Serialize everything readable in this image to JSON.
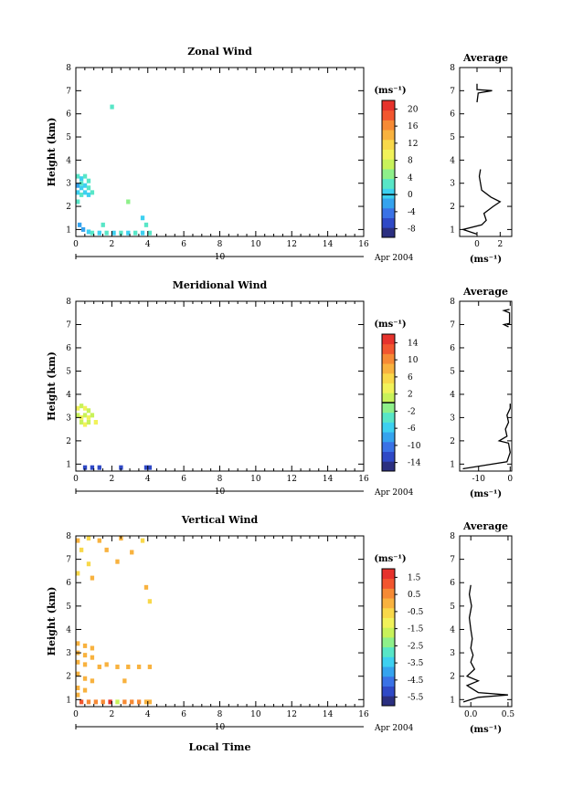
{
  "figure": {
    "x_label": "Local Time",
    "date_label": "Apr 2004",
    "day_label": "10",
    "y_label": "Height (km)",
    "avg_title": "Average",
    "unit_label": "(ms⁻¹)"
  },
  "chart_data": [
    {
      "type": "heatmap",
      "title": "Zonal Wind",
      "x_ticks": [
        "0",
        "2",
        "4",
        "6",
        "8",
        "10",
        "12",
        "14",
        "16"
      ],
      "xlim": [
        0,
        16
      ],
      "y_ticks": [
        "1",
        "2",
        "3",
        "4",
        "5",
        "6",
        "7",
        "8"
      ],
      "ylim": [
        0.7,
        8
      ],
      "colorbar": {
        "ticks": [
          "-8",
          "-4",
          "0",
          "4",
          "8",
          "12",
          "16",
          "20"
        ],
        "range": [
          -10,
          22
        ],
        "zero_line": 0
      },
      "cells": [
        {
          "t": 0.0,
          "h": 3.3,
          "v": 2
        },
        {
          "t": 0.2,
          "h": 3.2,
          "v": 1
        },
        {
          "t": 0.4,
          "h": 3.3,
          "v": 2
        },
        {
          "t": 0.6,
          "h": 3.1,
          "v": 3
        },
        {
          "t": 0.0,
          "h": 2.9,
          "v": -1
        },
        {
          "t": 0.2,
          "h": 2.8,
          "v": 0
        },
        {
          "t": 0.4,
          "h": 2.9,
          "v": 1
        },
        {
          "t": 0.6,
          "h": 2.8,
          "v": 2
        },
        {
          "t": 0.0,
          "h": 2.6,
          "v": 1
        },
        {
          "t": 0.2,
          "h": 2.5,
          "v": 2
        },
        {
          "t": 0.4,
          "h": 2.6,
          "v": 0
        },
        {
          "t": 0.6,
          "h": 2.5,
          "v": 1
        },
        {
          "t": 0.8,
          "h": 2.6,
          "v": 2
        },
        {
          "t": 0.2,
          "h": 3.0,
          "v": 3
        },
        {
          "t": 0.0,
          "h": 2.2,
          "v": 2
        },
        {
          "t": 0.1,
          "h": 1.2,
          "v": -2
        },
        {
          "t": 0.3,
          "h": 1.0,
          "v": -1
        },
        {
          "t": 0.6,
          "h": 0.9,
          "v": 1
        },
        {
          "t": 0.8,
          "h": 0.85,
          "v": 2
        },
        {
          "t": 1.2,
          "h": 0.85,
          "v": 1
        },
        {
          "t": 1.6,
          "h": 0.85,
          "v": 2
        },
        {
          "t": 2.0,
          "h": 0.85,
          "v": 1
        },
        {
          "t": 2.4,
          "h": 0.85,
          "v": 2
        },
        {
          "t": 2.8,
          "h": 0.85,
          "v": 1
        },
        {
          "t": 3.2,
          "h": 0.85,
          "v": 2
        },
        {
          "t": 3.6,
          "h": 0.85,
          "v": 1
        },
        {
          "t": 4.0,
          "h": 0.85,
          "v": 2
        },
        {
          "t": 1.4,
          "h": 1.2,
          "v": 2
        },
        {
          "t": 3.8,
          "h": 1.2,
          "v": 2
        },
        {
          "t": 3.6,
          "h": 1.5,
          "v": 0
        },
        {
          "t": 2.8,
          "h": 2.2,
          "v": 5
        },
        {
          "t": 1.9,
          "h": 6.3,
          "v": 2
        }
      ],
      "average_profile": {
        "xlim": [
          -1.5,
          3
        ],
        "x_ticks": [
          "0",
          "2"
        ],
        "points": [
          {
            "h": 0.8,
            "v": 0.0
          },
          {
            "h": 1.0,
            "v": -1.2
          },
          {
            "h": 1.2,
            "v": 0.4
          },
          {
            "h": 1.4,
            "v": 0.8
          },
          {
            "h": 1.7,
            "v": 0.6
          },
          {
            "h": 2.0,
            "v": 1.4
          },
          {
            "h": 2.2,
            "v": 2.0
          },
          {
            "h": 2.4,
            "v": 1.2
          },
          {
            "h": 2.7,
            "v": 0.4
          },
          {
            "h": 3.0,
            "v": 0.3
          },
          {
            "h": 3.3,
            "v": 0.2
          },
          {
            "h": 3.6,
            "v": 0.3
          }
        ],
        "upper_points": [
          {
            "h": 6.5,
            "v": 0.0
          },
          {
            "h": 6.9,
            "v": 0.1
          },
          {
            "h": 7.0,
            "v": 1.3
          },
          {
            "h": 7.05,
            "v": 0.0
          },
          {
            "h": 7.3,
            "v": 0.0
          }
        ]
      }
    },
    {
      "type": "heatmap",
      "title": "Meridional Wind",
      "x_ticks": [
        "0",
        "2",
        "4",
        "6",
        "8",
        "10",
        "12",
        "14",
        "16"
      ],
      "xlim": [
        0,
        16
      ],
      "y_ticks": [
        "1",
        "2",
        "3",
        "4",
        "5",
        "6",
        "7",
        "8"
      ],
      "ylim": [
        0.7,
        8
      ],
      "colorbar": {
        "ticks": [
          "-14",
          "-10",
          "-6",
          "-2",
          "2",
          "6",
          "10",
          "14"
        ],
        "range": [
          -16,
          16
        ],
        "zero_line": 0
      },
      "cells": [
        {
          "t": 0.0,
          "h": 3.4,
          "v": 3
        },
        {
          "t": 0.2,
          "h": 3.5,
          "v": 2
        },
        {
          "t": 0.4,
          "h": 3.4,
          "v": 3
        },
        {
          "t": 0.6,
          "h": 3.3,
          "v": 2
        },
        {
          "t": 0.0,
          "h": 3.1,
          "v": 2
        },
        {
          "t": 0.2,
          "h": 3.0,
          "v": 3
        },
        {
          "t": 0.4,
          "h": 3.1,
          "v": 2
        },
        {
          "t": 0.6,
          "h": 3.0,
          "v": 3
        },
        {
          "t": 0.8,
          "h": 3.1,
          "v": 2
        },
        {
          "t": 0.2,
          "h": 2.8,
          "v": 2
        },
        {
          "t": 0.4,
          "h": 2.7,
          "v": 3
        },
        {
          "t": 0.6,
          "h": 2.8,
          "v": 2
        },
        {
          "t": 1.0,
          "h": 2.8,
          "v": 3
        },
        {
          "t": 0.4,
          "h": 0.85,
          "v": -12
        },
        {
          "t": 0.8,
          "h": 0.85,
          "v": -12
        },
        {
          "t": 1.2,
          "h": 0.85,
          "v": -12
        },
        {
          "t": 2.4,
          "h": 0.85,
          "v": -12
        },
        {
          "t": 3.8,
          "h": 0.85,
          "v": -12
        },
        {
          "t": 4.0,
          "h": 0.85,
          "v": -12
        }
      ],
      "average_profile": {
        "xlim": [
          -16,
          0.5
        ],
        "x_ticks": [
          "-10",
          "0"
        ],
        "points": [
          {
            "h": 0.8,
            "v": -15
          },
          {
            "h": 0.95,
            "v": -8
          },
          {
            "h": 1.1,
            "v": -1
          },
          {
            "h": 1.5,
            "v": 0
          },
          {
            "h": 1.9,
            "v": -0.5
          },
          {
            "h": 2.0,
            "v": -3.5
          },
          {
            "h": 2.2,
            "v": -1
          },
          {
            "h": 2.5,
            "v": -1.5
          },
          {
            "h": 2.8,
            "v": -0.5
          },
          {
            "h": 3.1,
            "v": -1
          },
          {
            "h": 3.4,
            "v": 0
          },
          {
            "h": 3.6,
            "v": 0
          }
        ],
        "upper_points": [
          {
            "h": 6.9,
            "v": -0.5
          },
          {
            "h": 7.0,
            "v": -2
          },
          {
            "h": 7.05,
            "v": -0.2
          },
          {
            "h": 7.5,
            "v": -0.2
          },
          {
            "h": 7.6,
            "v": -2
          },
          {
            "h": 7.65,
            "v": -0.2
          }
        ]
      }
    },
    {
      "type": "heatmap",
      "title": "Vertical Wind",
      "x_ticks": [
        "0",
        "2",
        "4",
        "6",
        "8",
        "10",
        "12",
        "14",
        "16"
      ],
      "xlim": [
        0,
        16
      ],
      "y_ticks": [
        "1",
        "2",
        "3",
        "4",
        "5",
        "6",
        "7",
        "8"
      ],
      "ylim": [
        0.7,
        8
      ],
      "colorbar": {
        "ticks": [
          "-5.5",
          "-4.5",
          "-3.5",
          "-2.5",
          "-1.5",
          "-0.5",
          "0.5",
          "1.5"
        ],
        "range": [
          -6,
          2
        ]
      },
      "cells": [
        {
          "t": 0.0,
          "h": 7.8,
          "v": -0.2
        },
        {
          "t": 0.6,
          "h": 7.9,
          "v": -0.5
        },
        {
          "t": 1.2,
          "h": 7.8,
          "v": -0.2
        },
        {
          "t": 2.4,
          "h": 7.9,
          "v": -0.2
        },
        {
          "t": 3.6,
          "h": 7.8,
          "v": -0.5
        },
        {
          "t": 0.2,
          "h": 7.4,
          "v": -0.5
        },
        {
          "t": 1.6,
          "h": 7.4,
          "v": -0.2
        },
        {
          "t": 3.0,
          "h": 7.3,
          "v": -0.2
        },
        {
          "t": 0.6,
          "h": 6.8,
          "v": -0.5
        },
        {
          "t": 2.2,
          "h": 6.9,
          "v": -0.2
        },
        {
          "t": 0.0,
          "h": 6.4,
          "v": -0.5
        },
        {
          "t": 0.8,
          "h": 6.2,
          "v": -0.2
        },
        {
          "t": 3.8,
          "h": 5.8,
          "v": -0.2
        },
        {
          "t": 4.0,
          "h": 5.2,
          "v": -0.5
        },
        {
          "t": 0.0,
          "h": 3.4,
          "v": 0.1
        },
        {
          "t": 0.4,
          "h": 3.3,
          "v": 0.2
        },
        {
          "t": 0.8,
          "h": 3.2,
          "v": 0.1
        },
        {
          "t": 0.0,
          "h": 3.0,
          "v": 0.2
        },
        {
          "t": 0.4,
          "h": 2.9,
          "v": 0.1
        },
        {
          "t": 0.8,
          "h": 2.8,
          "v": 0.2
        },
        {
          "t": 0.0,
          "h": 2.6,
          "v": 0.1
        },
        {
          "t": 0.4,
          "h": 2.5,
          "v": 0.2
        },
        {
          "t": 1.2,
          "h": 2.4,
          "v": 0.1
        },
        {
          "t": 1.6,
          "h": 2.5,
          "v": 0.2
        },
        {
          "t": 2.2,
          "h": 2.4,
          "v": 0.1
        },
        {
          "t": 2.8,
          "h": 2.4,
          "v": 0.2
        },
        {
          "t": 3.4,
          "h": 2.4,
          "v": 0.1
        },
        {
          "t": 4.0,
          "h": 2.4,
          "v": 0.2
        },
        {
          "t": 0.0,
          "h": 2.1,
          "v": 0.1
        },
        {
          "t": 0.4,
          "h": 1.9,
          "v": 0.2
        },
        {
          "t": 0.8,
          "h": 1.8,
          "v": 0.1
        },
        {
          "t": 2.6,
          "h": 1.8,
          "v": 0.2
        },
        {
          "t": 0.0,
          "h": 1.5,
          "v": 0.1
        },
        {
          "t": 0.4,
          "h": 1.4,
          "v": 0.2
        },
        {
          "t": 0.0,
          "h": 1.2,
          "v": 0.1
        },
        {
          "t": 0.2,
          "h": 0.9,
          "v": 1.2
        },
        {
          "t": 0.6,
          "h": 0.9,
          "v": 0.8
        },
        {
          "t": 1.0,
          "h": 0.9,
          "v": 0.6
        },
        {
          "t": 1.4,
          "h": 0.9,
          "v": 0.3
        },
        {
          "t": 1.8,
          "h": 0.9,
          "v": 1.5
        },
        {
          "t": 2.2,
          "h": 0.9,
          "v": -1.5
        },
        {
          "t": 2.6,
          "h": 0.9,
          "v": 0.3
        },
        {
          "t": 3.0,
          "h": 0.9,
          "v": 0.6
        },
        {
          "t": 3.4,
          "h": 0.9,
          "v": 0.3
        },
        {
          "t": 3.8,
          "h": 0.9,
          "v": 0.2
        },
        {
          "t": 4.0,
          "h": 0.9,
          "v": 0.1
        }
      ],
      "average_profile": {
        "xlim": [
          -0.15,
          0.55
        ],
        "x_ticks": [
          "0.0",
          "0.5"
        ],
        "points": [
          {
            "h": 0.9,
            "v": -0.1
          },
          {
            "h": 1.1,
            "v": 0.1
          },
          {
            "h": 1.2,
            "v": 0.5
          },
          {
            "h": 1.3,
            "v": 0.1
          },
          {
            "h": 1.6,
            "v": -0.05
          },
          {
            "h": 1.8,
            "v": 0.1
          },
          {
            "h": 2.0,
            "v": -0.05
          },
          {
            "h": 2.3,
            "v": 0.05
          },
          {
            "h": 2.6,
            "v": 0.0
          },
          {
            "h": 2.9,
            "v": 0.03
          },
          {
            "h": 3.2,
            "v": 0.0
          },
          {
            "h": 3.6,
            "v": 0.02
          },
          {
            "h": 4.0,
            "v": 0.0
          },
          {
            "h": 4.5,
            "v": -0.02
          },
          {
            "h": 5.0,
            "v": 0.01
          },
          {
            "h": 5.5,
            "v": -0.02
          },
          {
            "h": 5.9,
            "v": 0.0
          }
        ]
      }
    }
  ]
}
